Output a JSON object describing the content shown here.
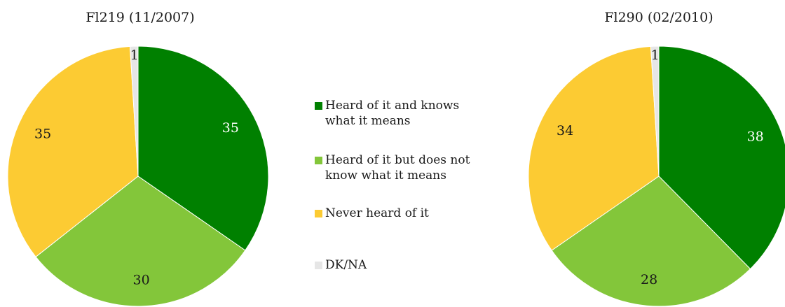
{
  "chart_data": [
    {
      "type": "pie",
      "title": "Fl219 (11/2007)",
      "slices": [
        {
          "label": "Heard of it and knows what it means",
          "value": 35,
          "color": "#008000",
          "label_color": "#ffffff"
        },
        {
          "label": "Heard of it but does not know what it means",
          "value": 30,
          "color": "#83c63a",
          "label_color": "#1a1a1a"
        },
        {
          "label": "Never heard of it",
          "value": 35,
          "color": "#fccb33",
          "label_color": "#1a1a1a"
        },
        {
          "label": "DK/NA",
          "value": 1,
          "color": "#e6e6e6",
          "label_color": "#1a1a1a"
        }
      ]
    },
    {
      "type": "pie",
      "title": "Fl290 (02/2010)",
      "slices": [
        {
          "label": "Heard of it and knows what it means",
          "value": 38,
          "color": "#008000",
          "label_color": "#ffffff"
        },
        {
          "label": "Heard of it but does not know what it means",
          "value": 28,
          "color": "#83c63a",
          "label_color": "#1a1a1a"
        },
        {
          "label": "Never heard of it",
          "value": 34,
          "color": "#fccb33",
          "label_color": "#1a1a1a"
        },
        {
          "label": "DK/NA",
          "value": 1,
          "color": "#e6e6e6",
          "label_color": "#1a1a1a"
        }
      ]
    }
  ],
  "legend": {
    "placement": "center",
    "items": [
      {
        "label": "Heard of it and knows what it means",
        "color": "#008000"
      },
      {
        "label": "Heard of it but does not know what it means",
        "color": "#83c63a"
      },
      {
        "label": "Never heard of it",
        "color": "#fccb33"
      },
      {
        "label": "DK/NA",
        "color": "#e6e6e6"
      }
    ]
  }
}
